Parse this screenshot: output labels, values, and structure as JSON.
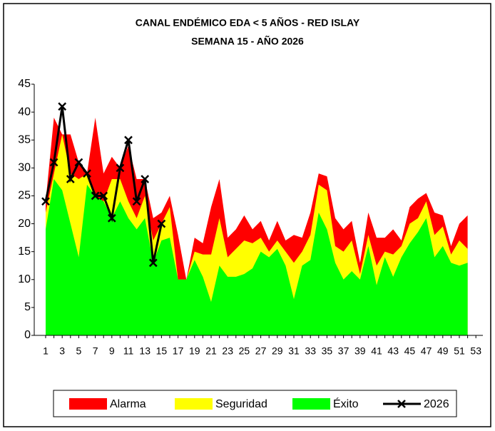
{
  "chart_data": {
    "type": "area",
    "title": "CANAL ENDÉMICO  EDA < 5 AÑOS - RED ISLAY",
    "subtitle": "SEMANA  15 -  AÑO 2026",
    "categories": [
      1,
      null,
      3,
      null,
      5,
      null,
      7,
      null,
      9,
      null,
      11,
      null,
      13,
      null,
      15,
      null,
      17,
      null,
      19,
      null,
      21,
      null,
      23,
      null,
      25,
      null,
      27,
      null,
      29,
      null,
      31,
      null,
      33,
      null,
      35,
      null,
      37,
      null,
      39,
      null,
      41,
      null,
      43,
      null,
      45,
      null,
      47,
      null,
      49,
      null,
      51,
      null,
      53
    ],
    "ylim": [
      0,
      45
    ],
    "yticks": [
      0,
      5,
      10,
      15,
      20,
      25,
      30,
      35,
      40,
      45
    ],
    "legend": "bottom",
    "series": [
      {
        "name": "Alarma",
        "color": "#ff0000",
        "values": [
          24,
          39,
          36,
          36,
          31,
          29,
          39,
          29,
          32,
          30,
          34,
          28,
          28,
          21,
          22,
          25,
          18,
          10,
          17.5,
          16.5,
          23,
          28,
          17.5,
          19,
          21.5,
          19,
          20.5,
          17,
          20.5,
          17,
          18,
          17.5,
          22,
          29,
          28.5,
          21,
          19,
          20.5,
          13,
          22,
          17.5,
          17.5,
          19,
          17,
          23,
          24.5,
          25.5,
          22,
          21.5,
          16,
          20,
          21.5,
          null
        ]
      },
      {
        "name": "Seguridad",
        "color": "#ffff00",
        "values": [
          22,
          29,
          36,
          29,
          28,
          29,
          25,
          24,
          28,
          28,
          24,
          21,
          25,
          17,
          20,
          23,
          10,
          10,
          15,
          14.5,
          14.5,
          21,
          14,
          15.5,
          17,
          16.5,
          17.5,
          15,
          17,
          15,
          13,
          15,
          18,
          27,
          26,
          16,
          15,
          17,
          11,
          18,
          12.5,
          15,
          14.5,
          16,
          20,
          21,
          24,
          18,
          19.5,
          14.5,
          17,
          15.5,
          null
        ]
      },
      {
        "name": "Éxito",
        "color": "#00ff00",
        "values": [
          19,
          28,
          26,
          20,
          14,
          27,
          25,
          24,
          21,
          24,
          21,
          19,
          21,
          13,
          17,
          17.5,
          10,
          10,
          13.5,
          10.5,
          6,
          12.5,
          10.5,
          10.5,
          11,
          12,
          15,
          14,
          15.5,
          12.5,
          6.5,
          12.5,
          13.5,
          22,
          19,
          13,
          10,
          11.5,
          10,
          16,
          9,
          14,
          10.5,
          14,
          16.5,
          18.5,
          21,
          14,
          16,
          13,
          12.5,
          13,
          null
        ]
      },
      {
        "name": "2026",
        "type": "line",
        "color": "#000000",
        "values": [
          24,
          31,
          41,
          28,
          31,
          29,
          25,
          25,
          21,
          30,
          35,
          24,
          28,
          13,
          20,
          null,
          null,
          null,
          null,
          null,
          null,
          null,
          null,
          null,
          null,
          null,
          null,
          null,
          null,
          null,
          null,
          null,
          null,
          null,
          null,
          null,
          null,
          null,
          null,
          null,
          null,
          null,
          null,
          null,
          null,
          null,
          null,
          null,
          null,
          null,
          null,
          null,
          null
        ]
      }
    ]
  }
}
